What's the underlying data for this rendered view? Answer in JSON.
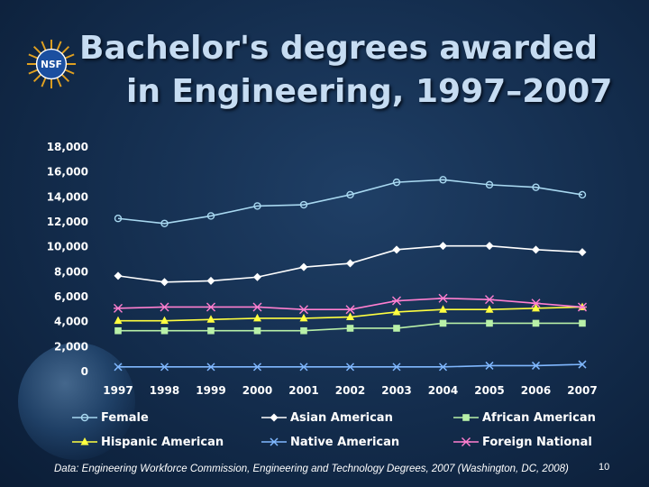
{
  "title": {
    "line1": "Bachelor's degrees awarded",
    "line2": "in Engineering, 1997–2007"
  },
  "logo": {
    "text": "NSF",
    "icon": "nsf-logo-icon"
  },
  "source": "Data:  Engineering Workforce Commission, Engineering and Technology Degrees, 2007 (Washington, DC, 2008)",
  "page_number": "10",
  "chart_data": {
    "type": "line",
    "title": "",
    "xlabel": "",
    "ylabel": "",
    "x": [
      "1997",
      "1998",
      "1999",
      "2000",
      "2001",
      "2002",
      "2003",
      "2004",
      "2005",
      "2006",
      "2007"
    ],
    "ylim": [
      0,
      18000
    ],
    "ytick_labels": [
      "0",
      "2,000",
      "4,000",
      "6,000",
      "8,000",
      "10,000",
      "12,000",
      "14,000",
      "16,000",
      "18,000"
    ],
    "ytick_values": [
      0,
      2000,
      4000,
      6000,
      8000,
      10000,
      12000,
      14000,
      16000,
      18000
    ],
    "grid": false,
    "legend": "bottom",
    "series": [
      {
        "name": "Female",
        "marker": "circle",
        "color": "#a8d8f0",
        "values": [
          12200,
          11800,
          12400,
          13200,
          13300,
          14100,
          15100,
          15300,
          14900,
          14700,
          14100
        ]
      },
      {
        "name": "Asian American",
        "marker": "diamond",
        "color": "#ffffff",
        "values": [
          7600,
          7100,
          7200,
          7500,
          8300,
          8600,
          9700,
          10000,
          10000,
          9700,
          9500
        ]
      },
      {
        "name": "African American",
        "marker": "square",
        "color": "#b8f0a8",
        "values": [
          3200,
          3200,
          3200,
          3200,
          3200,
          3400,
          3400,
          3800,
          3800,
          3800,
          3800
        ]
      },
      {
        "name": "Hispanic American",
        "marker": "triangle",
        "color": "#ffff40",
        "values": [
          4000,
          4000,
          4100,
          4200,
          4200,
          4300,
          4700,
          4900,
          4900,
          5000,
          5100
        ]
      },
      {
        "name": "Native American",
        "marker": "x",
        "color": "#80b8ff",
        "values": [
          300,
          300,
          300,
          300,
          300,
          300,
          300,
          300,
          400,
          400,
          500
        ]
      },
      {
        "name": "Foreign National",
        "marker": "star",
        "color": "#ff7fd0",
        "values": [
          5000,
          5100,
          5100,
          5100,
          4900,
          4900,
          5600,
          5800,
          5700,
          5400,
          5100
        ]
      }
    ]
  }
}
